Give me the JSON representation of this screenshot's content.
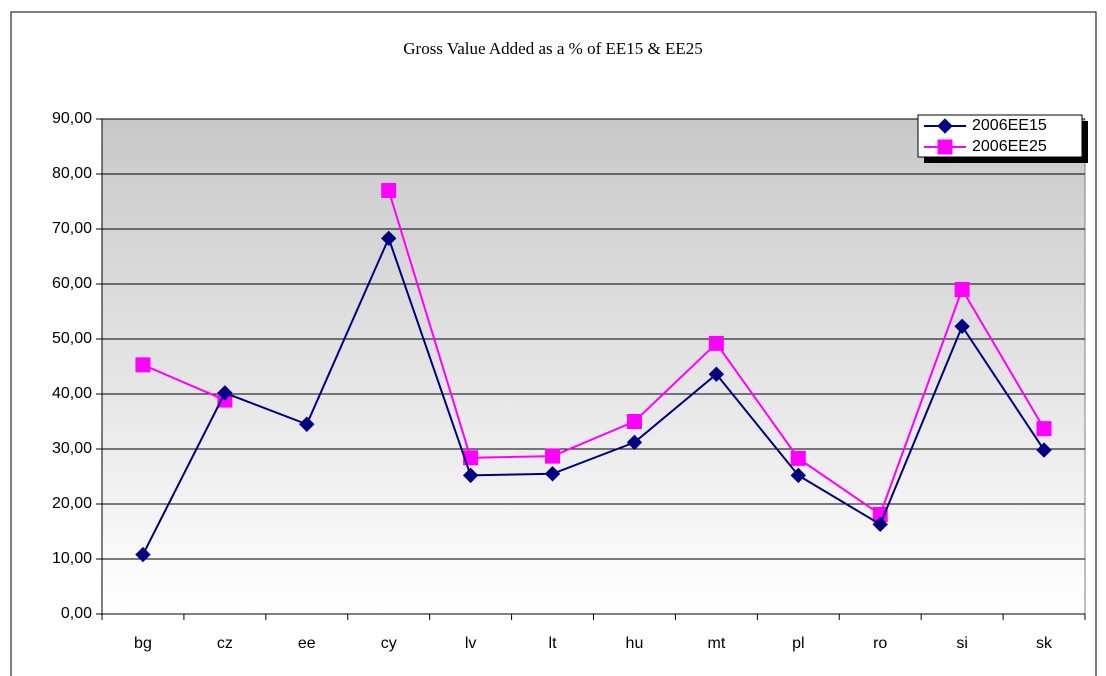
{
  "chart_data": {
    "type": "line",
    "title": "Gross Value Added as a % of EE15 & EE25",
    "categories": [
      "bg",
      "cz",
      "ee",
      "cy",
      "lv",
      "lt",
      "hu",
      "mt",
      "pl",
      "ro",
      "si",
      "sk"
    ],
    "series": [
      {
        "name": "2006EE15",
        "color": "#000080",
        "marker": "diamond",
        "values": [
          10.8,
          40.2,
          34.5,
          68.3,
          25.2,
          25.5,
          31.2,
          43.6,
          25.2,
          16.3,
          52.3,
          29.8
        ]
      },
      {
        "name": "2006EE25",
        "color": "#ff00ff",
        "marker": "square",
        "values": [
          45.3,
          38.9,
          null,
          77.0,
          28.4,
          28.7,
          35.0,
          49.2,
          28.3,
          18.1,
          59.0,
          33.7
        ]
      }
    ],
    "ylim": [
      0,
      90
    ],
    "yticks": [
      {
        "value": 0,
        "label": "0,00"
      },
      {
        "value": 10,
        "label": "10,00"
      },
      {
        "value": 20,
        "label": "20,00"
      },
      {
        "value": 30,
        "label": "30,00"
      },
      {
        "value": 40,
        "label": "40,00"
      },
      {
        "value": 50,
        "label": "50,00"
      },
      {
        "value": 60,
        "label": "60,00"
      },
      {
        "value": 70,
        "label": "70,00"
      },
      {
        "value": 80,
        "label": "80,00"
      },
      {
        "value": 90,
        "label": "90,00"
      }
    ],
    "grid": true,
    "legend": "top-right"
  }
}
